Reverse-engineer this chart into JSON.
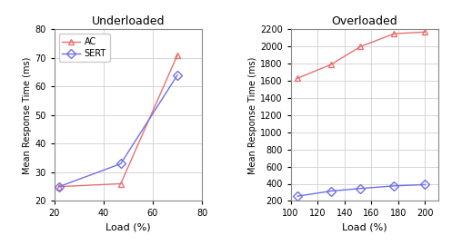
{
  "underloaded": {
    "title": "Underloaded",
    "xlabel": "Load (%)",
    "ylabel": "Mean Response Time (ms)",
    "xlim": [
      20,
      80
    ],
    "ylim": [
      20,
      80
    ],
    "xticks": [
      20,
      40,
      60,
      80
    ],
    "yticks": [
      20,
      30,
      40,
      50,
      60,
      70,
      80
    ],
    "ac": {
      "x": [
        22,
        47,
        70
      ],
      "y": [
        25,
        26,
        71
      ],
      "color": "#e87070",
      "marker": "^",
      "label": "AC"
    },
    "sert": {
      "x": [
        22,
        47,
        70
      ],
      "y": [
        25,
        33,
        64
      ],
      "color": "#7070e8",
      "marker": "D",
      "label": "SERT"
    }
  },
  "overloaded": {
    "title": "Overloaded",
    "xlabel": "Load (%)",
    "ylabel": "Mean Response Time (ms)",
    "xlim": [
      100,
      210
    ],
    "ylim": [
      200,
      2200
    ],
    "xticks": [
      100,
      120,
      140,
      160,
      180,
      200
    ],
    "yticks": [
      200,
      400,
      600,
      800,
      1000,
      1200,
      1400,
      1600,
      1800,
      2000,
      2200
    ],
    "ac": {
      "x": [
        105,
        130,
        152,
        177,
        200
      ],
      "y": [
        1630,
        1790,
        2000,
        2150,
        2170
      ],
      "color": "#e87070",
      "marker": "^",
      "label": "AC"
    },
    "sert": {
      "x": [
        105,
        130,
        152,
        177,
        200
      ],
      "y": [
        255,
        315,
        345,
        375,
        390
      ],
      "color": "#7070e8",
      "marker": "D",
      "label": "SERT"
    }
  }
}
